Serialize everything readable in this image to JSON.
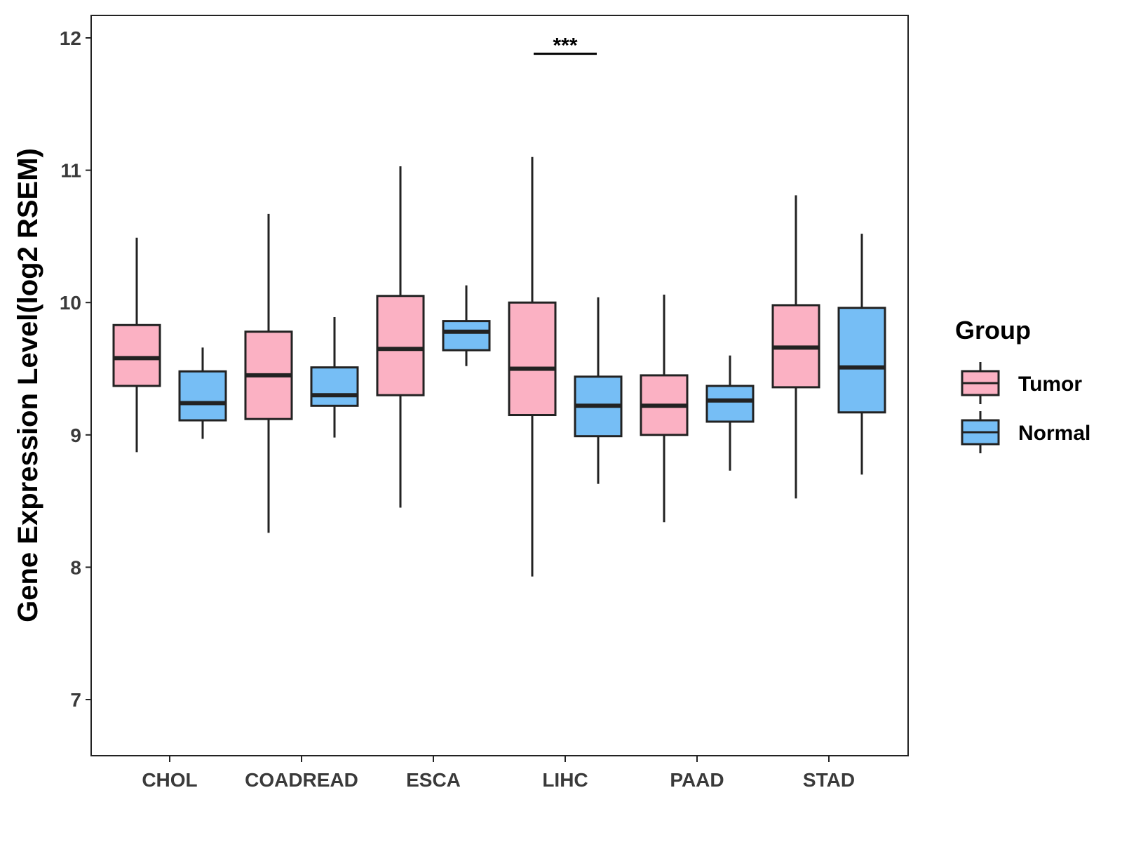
{
  "chart_data": {
    "type": "boxplot",
    "title": "",
    "xlabel": "",
    "ylabel": "Gene Expression Level(log2 RSEM)",
    "ylim": [
      6.6,
      12.2
    ],
    "yticks": [
      7,
      8,
      9,
      10,
      11,
      12
    ],
    "categories": [
      "CHOL",
      "COADREAD",
      "ESCA",
      "LIHC",
      "PAAD",
      "STAD"
    ],
    "legend": {
      "title": "Group",
      "position": "right"
    },
    "series": [
      {
        "name": "Tumor",
        "color": "#FBB1C3",
        "boxes": [
          {
            "min": 8.87,
            "q1": 9.37,
            "median": 9.58,
            "q3": 9.83,
            "max": 10.49
          },
          {
            "min": 8.26,
            "q1": 9.12,
            "median": 9.45,
            "q3": 9.78,
            "max": 10.67
          },
          {
            "min": 8.45,
            "q1": 9.3,
            "median": 9.65,
            "q3": 10.05,
            "max": 11.03
          },
          {
            "min": 7.93,
            "q1": 9.15,
            "median": 9.5,
            "q3": 10.0,
            "max": 11.1
          },
          {
            "min": 8.34,
            "q1": 9.0,
            "median": 9.22,
            "q3": 9.45,
            "max": 10.06
          },
          {
            "min": 8.52,
            "q1": 9.36,
            "median": 9.66,
            "q3": 9.98,
            "max": 10.81
          }
        ]
      },
      {
        "name": "Normal",
        "color": "#76BEF5",
        "boxes": [
          {
            "min": 8.97,
            "q1": 9.11,
            "median": 9.24,
            "q3": 9.48,
            "max": 9.66
          },
          {
            "min": 8.98,
            "q1": 9.22,
            "median": 9.3,
            "q3": 9.51,
            "max": 9.89
          },
          {
            "min": 9.52,
            "q1": 9.64,
            "median": 9.78,
            "q3": 9.86,
            "max": 10.13
          },
          {
            "min": 8.63,
            "q1": 8.99,
            "median": 9.22,
            "q3": 9.44,
            "max": 10.04
          },
          {
            "min": 8.73,
            "q1": 9.1,
            "median": 9.26,
            "q3": 9.37,
            "max": 9.6
          },
          {
            "min": 8.7,
            "q1": 9.17,
            "median": 9.51,
            "q3": 9.96,
            "max": 10.52
          }
        ]
      }
    ],
    "annotations": [
      {
        "category": "LIHC",
        "text": "***",
        "y": 11.88
      }
    ]
  }
}
